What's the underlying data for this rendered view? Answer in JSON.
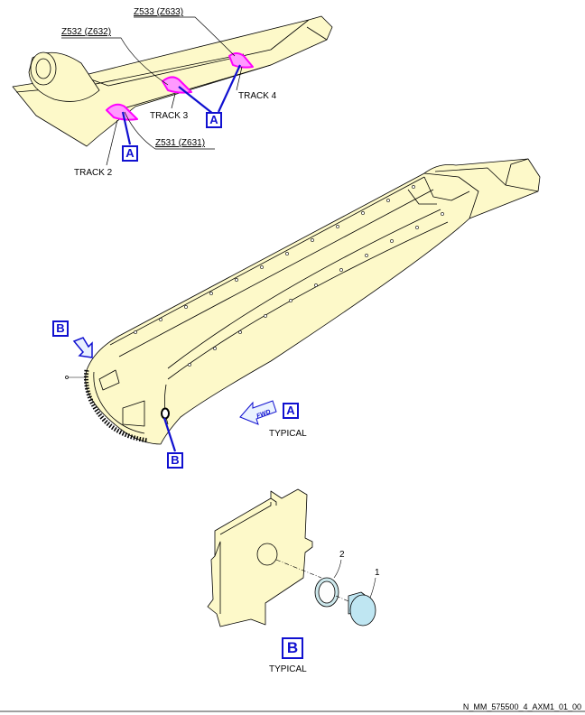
{
  "zones": {
    "z533": "Z533 (Z633)",
    "z532": "Z532 (Z632)",
    "z531": "Z531 (Z631)"
  },
  "tracks": {
    "track2": "TRACK 2",
    "track3": "TRACK 3",
    "track4": "TRACK 4"
  },
  "refs": {
    "a": "A",
    "b": "B"
  },
  "views": {
    "a_caption": "TYPICAL",
    "b_caption": "TYPICAL",
    "fwd": "FWD"
  },
  "items": {
    "item1": "1",
    "item2": "2"
  },
  "footer": "N_MM_575500_4_AXM1_01_00",
  "colors": {
    "part_fill": "#fdf9c9",
    "highlight": "#ff00ff",
    "callout_blue": "#1010d0",
    "washer_fill": "#cde8ec",
    "cap_fill": "#bfe6f2"
  }
}
